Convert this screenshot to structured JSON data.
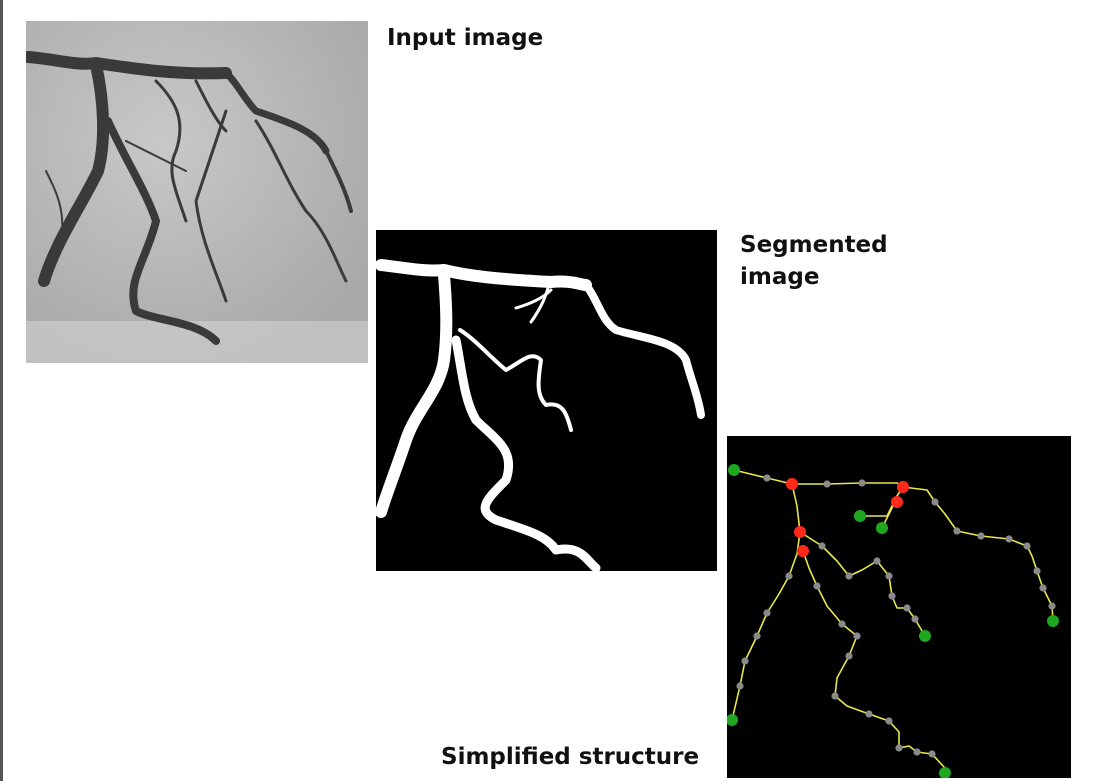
{
  "captions": {
    "input": "Input image",
    "segmented": "Segmented\nimage",
    "simplified": "Simplified structure"
  },
  "colors": {
    "vessel_dark": "#3a3a3a",
    "background_gray": "#bdbdbd",
    "segmentation_fg": "#ffffff",
    "segmentation_bg": "#000000",
    "skeleton_line": "#e8e84a",
    "node_regular": "#8a8a8a",
    "node_branch": "#ff2a1a",
    "node_endpoint": "#1fa81f"
  }
}
